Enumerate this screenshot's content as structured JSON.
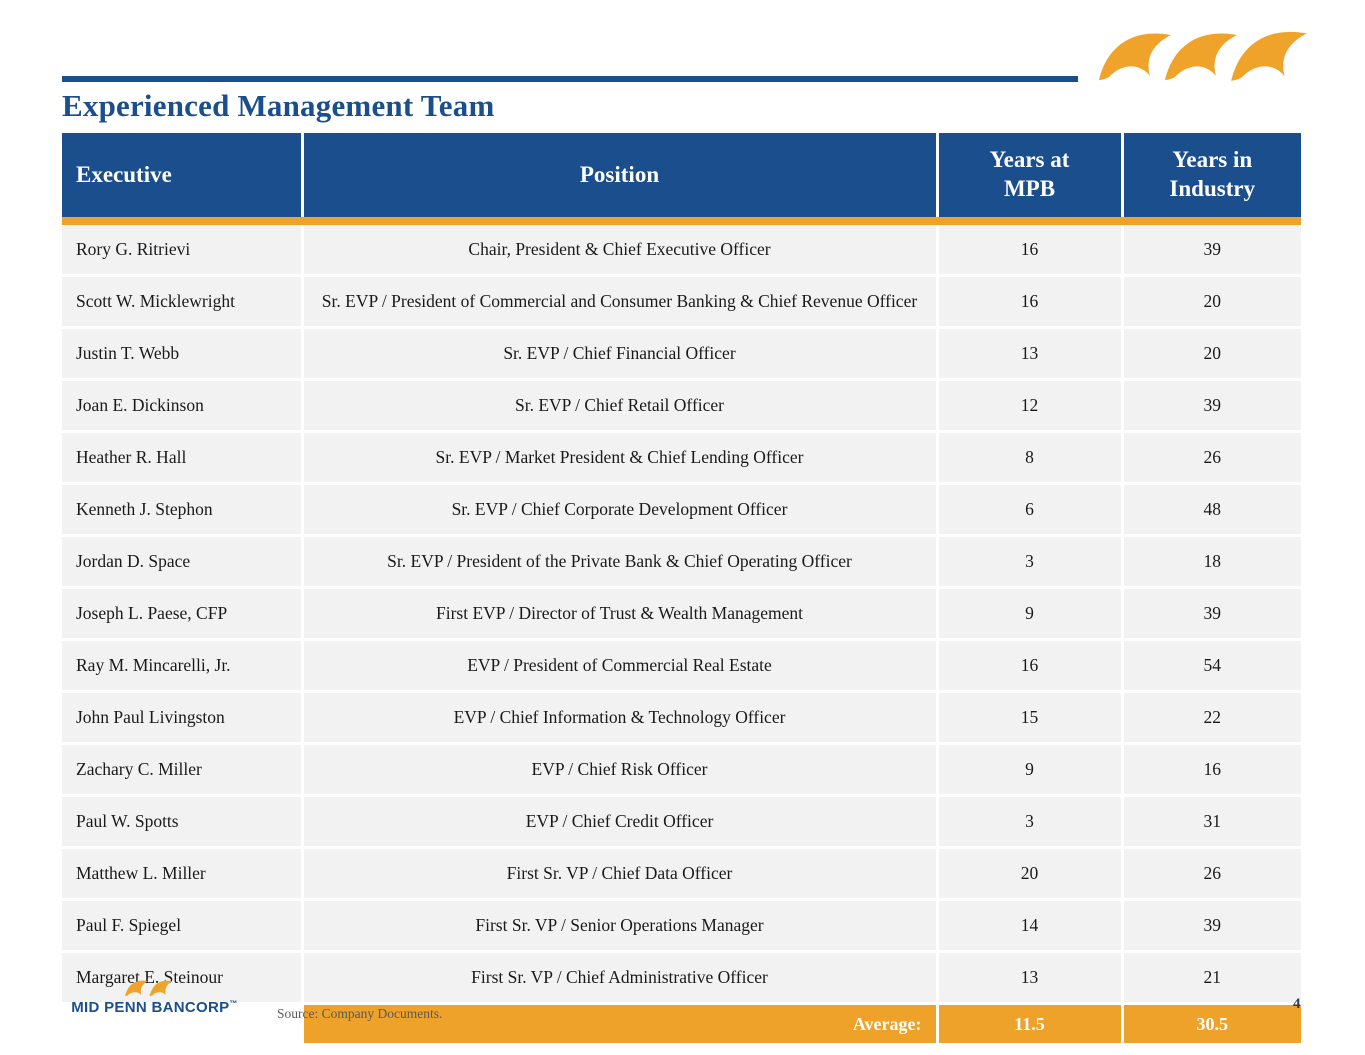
{
  "title": "Experienced Management Team",
  "colors": {
    "blue": "#1B4E8C",
    "orange": "#EEA229",
    "row_gray": "#F2F2F2"
  },
  "logo": {
    "brand": "MID PENN BANCORP",
    "trademark": "™",
    "icon": "wave-icon"
  },
  "table": {
    "headers": {
      "executive": "Executive",
      "position": "Position",
      "years_mpb": "Years at\nMPB",
      "years_industry": "Years in\nIndustry"
    },
    "rows": [
      {
        "executive": "Rory G. Ritrievi",
        "position": "Chair, President & Chief Executive Officer",
        "years_mpb": "16",
        "years_industry": "39"
      },
      {
        "executive": "Scott W. Micklewright",
        "position": "Sr. EVP / President of Commercial and Consumer Banking & Chief Revenue Officer",
        "years_mpb": "16",
        "years_industry": "20"
      },
      {
        "executive": "Justin T. Webb",
        "position": "Sr. EVP / Chief Financial Officer",
        "years_mpb": "13",
        "years_industry": "20"
      },
      {
        "executive": "Joan E. Dickinson",
        "position": "Sr. EVP / Chief Retail Officer",
        "years_mpb": "12",
        "years_industry": "39"
      },
      {
        "executive": "Heather R. Hall",
        "position": "Sr. EVP / Market President & Chief Lending Officer",
        "years_mpb": "8",
        "years_industry": "26"
      },
      {
        "executive": "Kenneth J. Stephon",
        "position": "Sr. EVP / Chief Corporate Development Officer",
        "years_mpb": "6",
        "years_industry": "48"
      },
      {
        "executive": "Jordan D. Space",
        "position": "Sr. EVP / President of the Private Bank & Chief Operating Officer",
        "years_mpb": "3",
        "years_industry": "18"
      },
      {
        "executive": "Joseph L. Paese, CFP",
        "position": "First EVP / Director of Trust & Wealth Management",
        "years_mpb": "9",
        "years_industry": "39"
      },
      {
        "executive": "Ray M. Mincarelli, Jr.",
        "position": "EVP / President of Commercial Real Estate",
        "years_mpb": "16",
        "years_industry": "54"
      },
      {
        "executive": "John Paul Livingston",
        "position": "EVP / Chief Information & Technology Officer",
        "years_mpb": "15",
        "years_industry": "22"
      },
      {
        "executive": "Zachary C. Miller",
        "position": "EVP / Chief Risk Officer",
        "years_mpb": "9",
        "years_industry": "16"
      },
      {
        "executive": "Paul W. Spotts",
        "position": "EVP / Chief Credit Officer",
        "years_mpb": "3",
        "years_industry": "31"
      },
      {
        "executive": "Matthew L. Miller",
        "position": "First Sr. VP / Chief Data Officer",
        "years_mpb": "20",
        "years_industry": "26"
      },
      {
        "executive": "Paul F. Spiegel",
        "position": "First Sr. VP / Senior Operations Manager",
        "years_mpb": "14",
        "years_industry": "39"
      },
      {
        "executive": "Margaret E. Steinour",
        "position": "First Sr. VP / Chief Administrative Officer",
        "years_mpb": "13",
        "years_industry": "21"
      }
    ],
    "footer": {
      "label": "Average:",
      "years_mpb": "11.5",
      "years_industry": "30.5"
    }
  },
  "footer": {
    "source": "Source: Company Documents.",
    "page_number": "4"
  }
}
